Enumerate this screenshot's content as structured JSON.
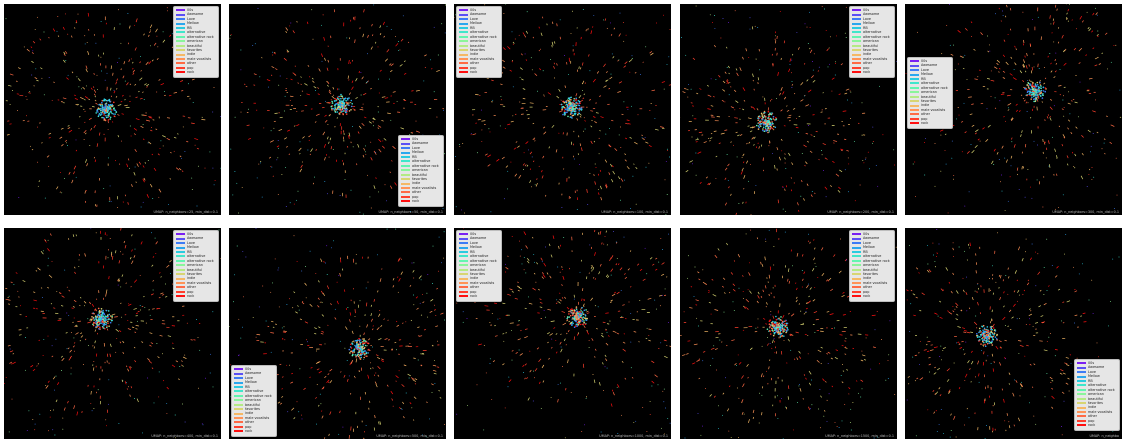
{
  "legend": {
    "entries": [
      {
        "label": "00s",
        "color": "#7a1ff2"
      },
      {
        "label": "Awesome",
        "color": "#5b4ff5"
      },
      {
        "label": "Love",
        "color": "#3d7cf5"
      },
      {
        "label": "Mellow",
        "color": "#2aa7ee"
      },
      {
        "label": "RB",
        "color": "#29cbe0"
      },
      {
        "label": "alternative",
        "color": "#3fe6cb"
      },
      {
        "label": "alternative rock",
        "color": "#62f5b0"
      },
      {
        "label": "american",
        "color": "#8af59a"
      },
      {
        "label": "beautiful",
        "color": "#b4ea85"
      },
      {
        "label": "favorites",
        "color": "#d8d572"
      },
      {
        "label": "indie",
        "color": "#f5b865"
      },
      {
        "label": "male vocalists",
        "color": "#ff9357"
      },
      {
        "label": "other",
        "color": "#ff6a45"
      },
      {
        "label": "pop",
        "color": "#ff3f2c"
      },
      {
        "label": "rock",
        "color": "#ff0f10"
      }
    ]
  },
  "chart_data": [
    {
      "type": "scatter",
      "caption": "UMAP: n_neighbors=25, min_dist=0.1",
      "n_neighbors": 25,
      "min_dist": 0.1,
      "legend_position": "top-right"
    },
    {
      "type": "scatter",
      "caption": "UMAP: n_neighbors=50, min_dist=0.1",
      "n_neighbors": 50,
      "min_dist": 0.1,
      "legend_position": "bottom-right"
    },
    {
      "type": "scatter",
      "caption": "UMAP: n_neighbors=100, min_dist=0.1",
      "n_neighbors": 100,
      "min_dist": 0.1,
      "legend_position": "top-left"
    },
    {
      "type": "scatter",
      "caption": "UMAP: n_neighbors=200, min_dist=0.1",
      "n_neighbors": 200,
      "min_dist": 0.1,
      "legend_position": "top-right"
    },
    {
      "type": "scatter",
      "caption": "UMAP: n_neighbors=300, min_dist=0.1",
      "n_neighbors": 300,
      "min_dist": 0.1,
      "legend_position": "left"
    },
    {
      "type": "scatter",
      "caption": "UMAP: n_neighbors=400, min_dist=0.1",
      "n_neighbors": 400,
      "min_dist": 0.1,
      "legend_position": "top-right"
    },
    {
      "type": "scatter",
      "caption": "UMAP: n_neighbors=500, min_dist=0.1",
      "n_neighbors": 500,
      "min_dist": 0.1,
      "legend_position": "bottom-left"
    },
    {
      "type": "scatter",
      "caption": "UMAP: n_neighbors=1000, min_dist=0.1",
      "n_neighbors": 1000,
      "min_dist": 0.1,
      "legend_position": "top-left"
    },
    {
      "type": "scatter",
      "caption": "UMAP: n_neighbors=1500, min_dist=0.1",
      "n_neighbors": 1500,
      "min_dist": 0.1,
      "legend_position": "top-right"
    },
    {
      "type": "scatter",
      "caption": "UMAP: n_neighbo",
      "n_neighbors": null,
      "min_dist": null,
      "legend_position": "bottom-right"
    }
  ]
}
